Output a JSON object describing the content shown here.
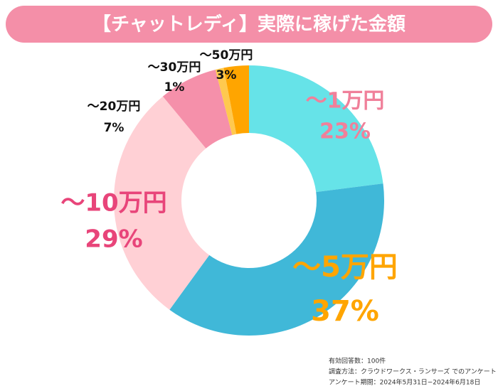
{
  "chart_data": {
    "type": "donut",
    "title": "【チャットレディ】実際に稼げた金額",
    "categories": [
      "〜1万円",
      "〜5万円",
      "〜10万円",
      "〜20万円",
      "〜30万円",
      "〜50万円"
    ],
    "values": [
      23,
      37,
      29,
      7,
      1,
      3
    ],
    "value_labels": [
      "23%",
      "37%",
      "29%",
      "7%",
      "1%",
      "3%"
    ],
    "colors": [
      "#66e3e8",
      "#40b8d8",
      "#ffd0d5",
      "#f590aa",
      "#ffc94f",
      "#ffa500"
    ],
    "label_colors": [
      "#f0809a",
      "#ffa500",
      "#e8457a",
      "#111111",
      "#111111",
      "#111111"
    ],
    "notes": [
      "有効回答数：100件",
      "調査方法：クラウドワークス・ランサーズ でのアンケート",
      "アンケート期間：2024年5月31日−2024年6月18日"
    ]
  }
}
